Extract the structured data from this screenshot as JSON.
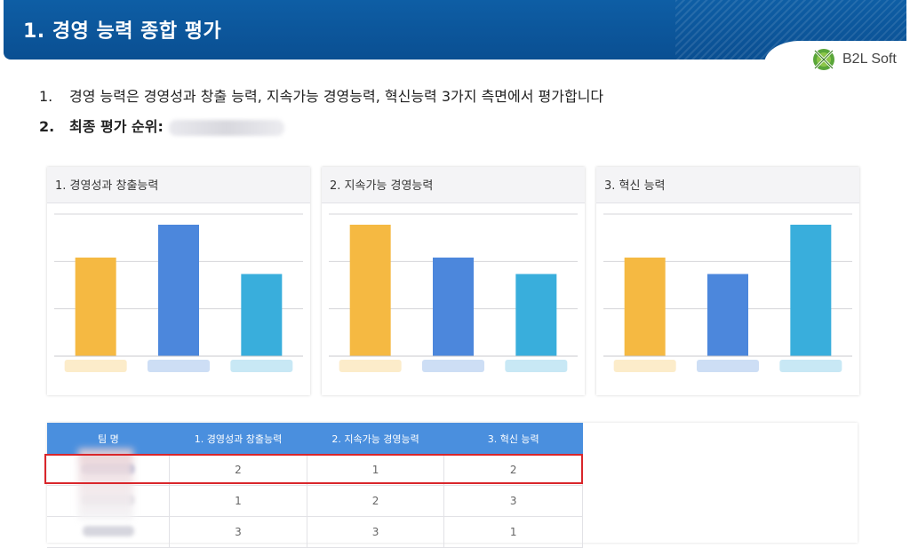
{
  "header": {
    "title": "1. 경영 능력 종합 평가"
  },
  "logo": {
    "text": "B2L Soft"
  },
  "lines": [
    {
      "num": "1.",
      "text": "경영 능력은 경영성과 창출 능력, 지속가능 경영능력, 혁신능력 3가지 측면에서 평가합니다"
    },
    {
      "num": "2.",
      "text": "최종 평가 순위:"
    }
  ],
  "colors": {
    "yellow": "#f5b942",
    "blue": "#4c87dc",
    "cyan": "#39aedc",
    "header": "#0c56a0",
    "highlight": "#d9262b"
  },
  "chart_data": [
    {
      "type": "bar",
      "title": "1. 경영성과 창출능력",
      "values": [
        3,
        4,
        2.5
      ],
      "colors": [
        "#f5b942",
        "#4c87dc",
        "#39aedc"
      ],
      "ylim": [
        0,
        4
      ]
    },
    {
      "type": "bar",
      "title": "2. 지속가능 경영능력",
      "values": [
        4,
        3,
        2.5
      ],
      "colors": [
        "#f5b942",
        "#4c87dc",
        "#39aedc"
      ],
      "ylim": [
        0,
        4
      ]
    },
    {
      "type": "bar",
      "title": "3. 혁신 능력",
      "values": [
        3,
        2.5,
        4
      ],
      "colors": [
        "#f5b942",
        "#4c87dc",
        "#39aedc"
      ],
      "ylim": [
        0,
        4
      ]
    }
  ],
  "table": {
    "headers": [
      "팀 명",
      "1. 경영성과 창출능력",
      "2. 지속가능 경영능력",
      "3. 혁신 능력"
    ],
    "rows": [
      {
        "c1": "2",
        "c2": "1",
        "c3": "2"
      },
      {
        "c1": "1",
        "c2": "2",
        "c3": "3"
      },
      {
        "c1": "3",
        "c2": "3",
        "c3": "1"
      }
    ]
  }
}
